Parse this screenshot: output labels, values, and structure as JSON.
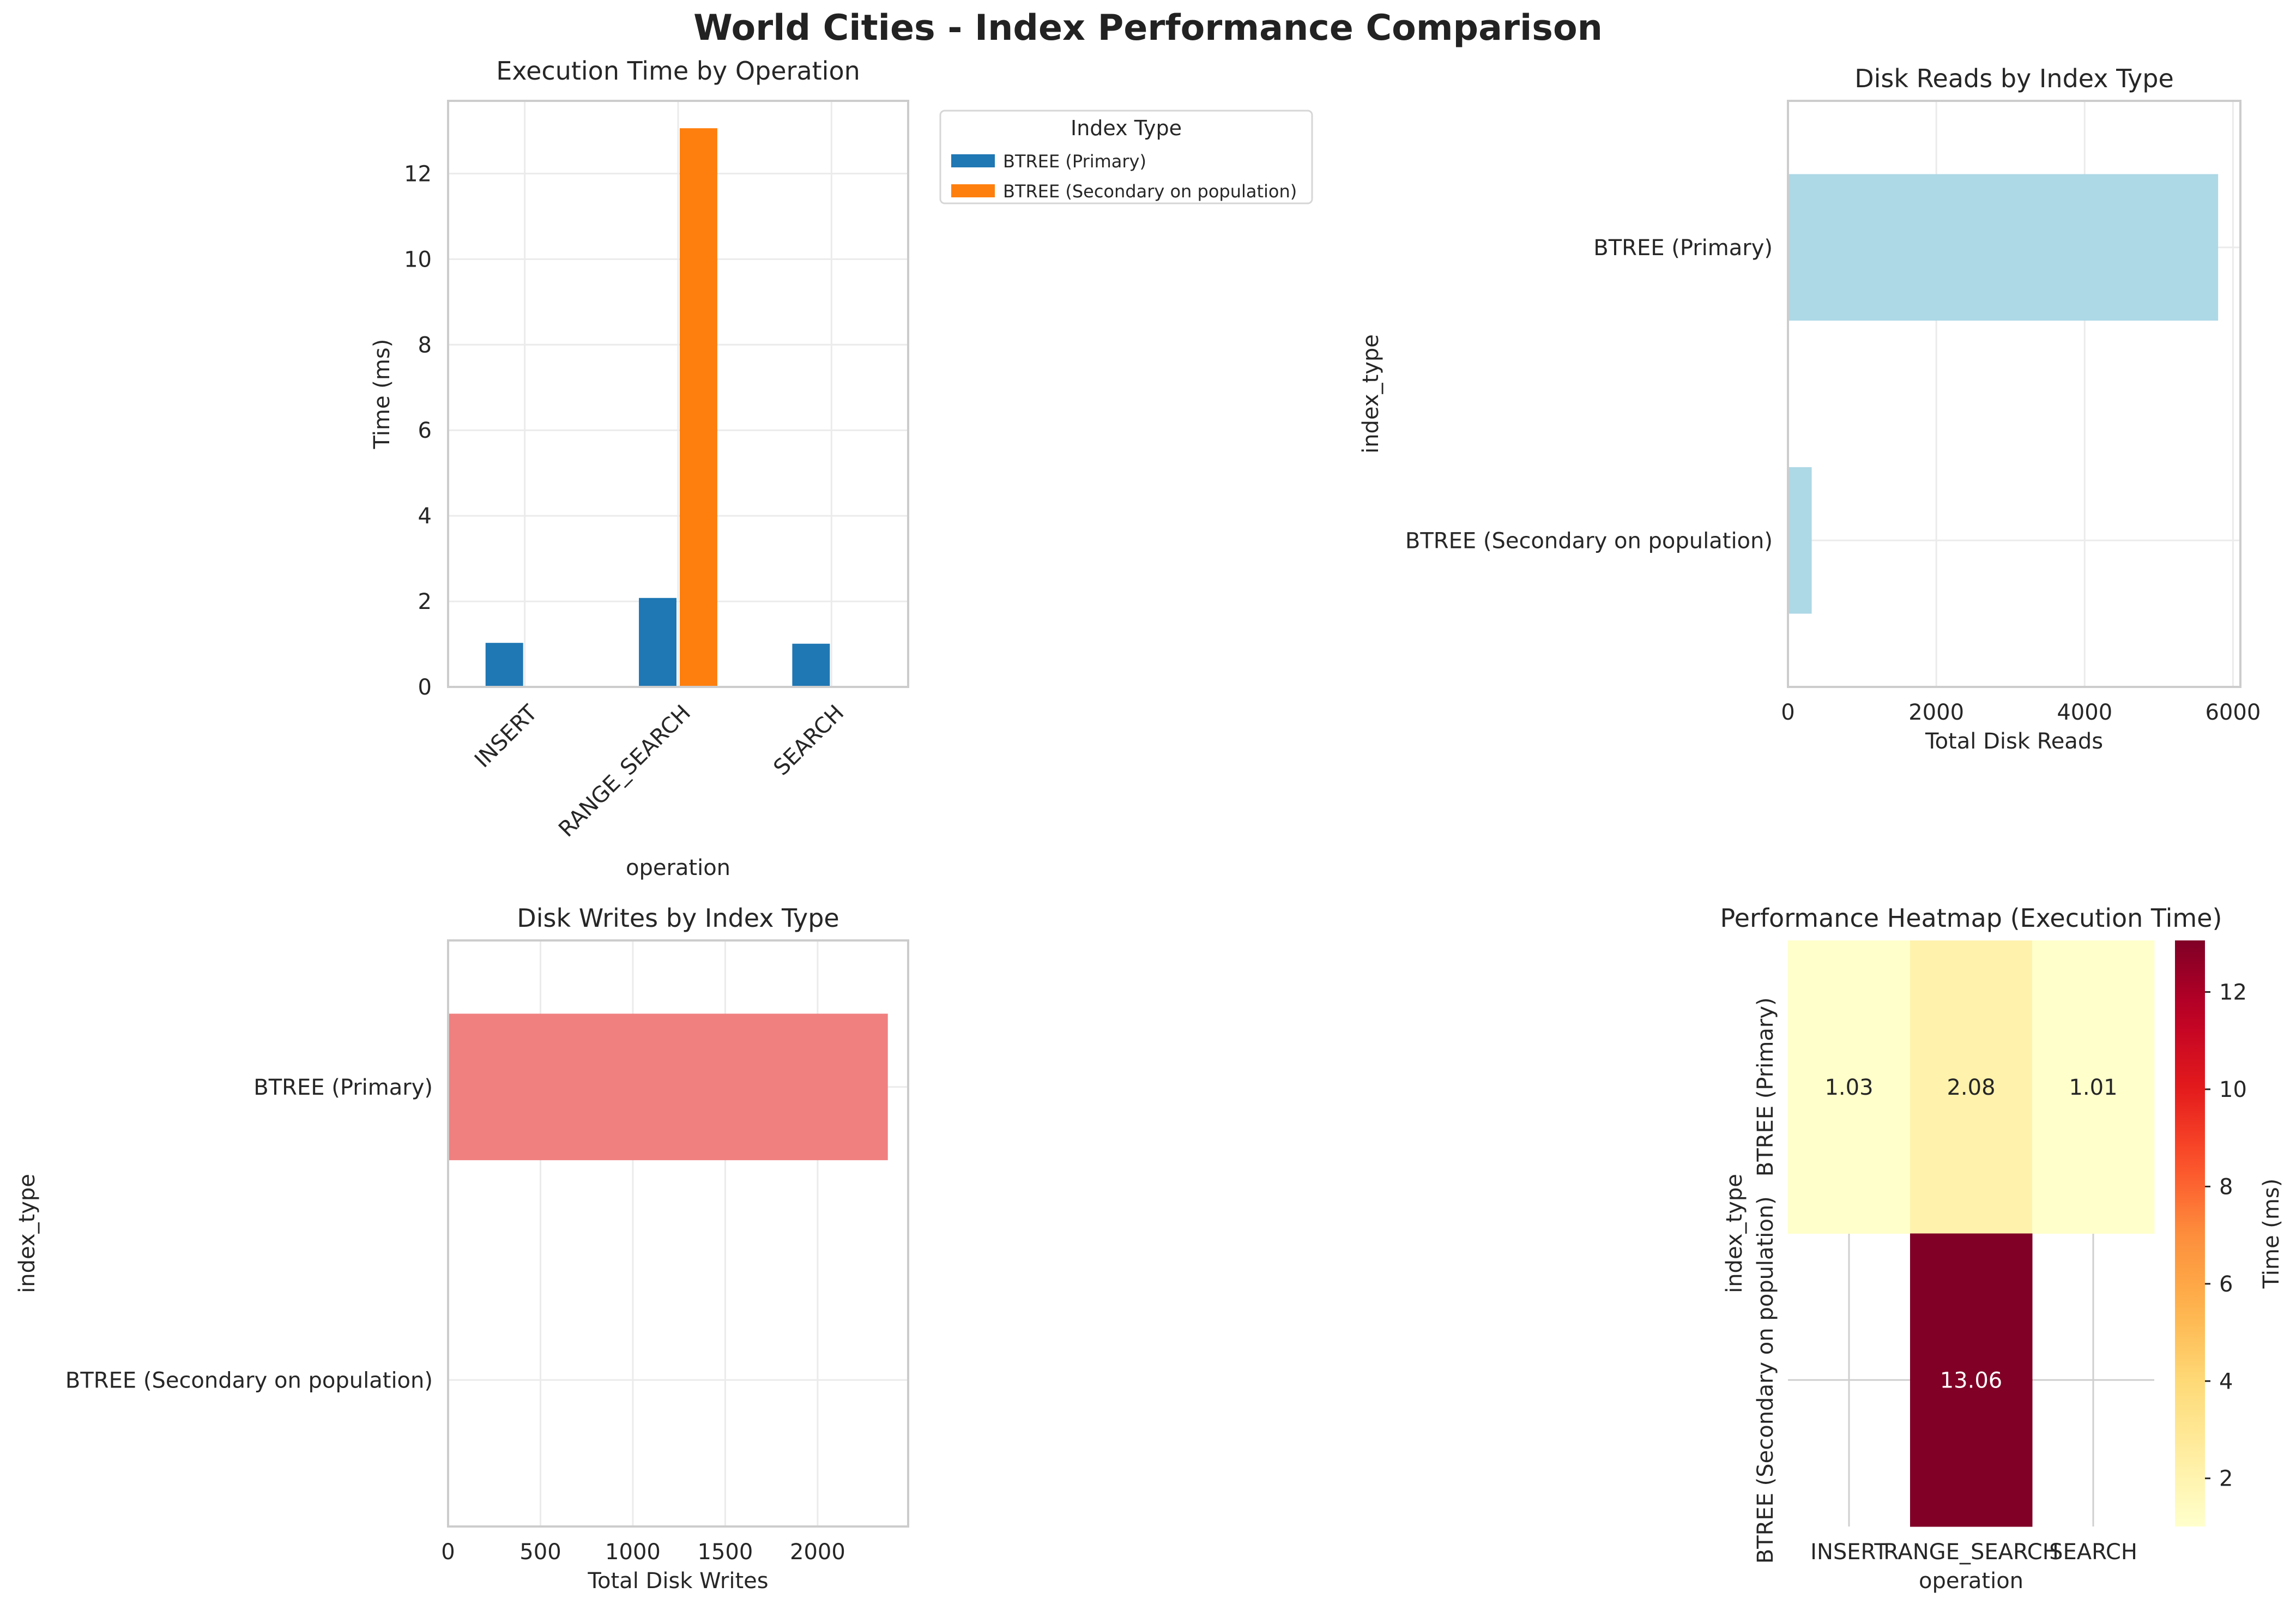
{
  "title": "World Cities - Index Performance Comparison",
  "colors": {
    "btree_primary": "#1f77b4",
    "btree_secondary": "#ff7f0e",
    "disk_reads_bar": "#add8e6",
    "disk_writes_bar": "#f08080",
    "colormap": "YlOrRd"
  },
  "chart_data": [
    {
      "id": "exec_time",
      "type": "bar",
      "title": "Execution Time by Operation",
      "xlabel": "operation",
      "ylabel": "Time (ms)",
      "categories": [
        "INSERT",
        "RANGE_SEARCH",
        "SEARCH"
      ],
      "series": [
        {
          "name": "BTREE (Primary)",
          "values": [
            1.03,
            2.08,
            1.01
          ]
        },
        {
          "name": "BTREE (Secondary on population)",
          "values": [
            0,
            13.06,
            0
          ]
        }
      ],
      "ylim": [
        0,
        13.7
      ],
      "yticks": [
        0,
        2,
        4,
        6,
        8,
        10,
        12
      ],
      "legend": {
        "title": "Index Type",
        "placement": "outside upper-right"
      },
      "grid": true
    },
    {
      "id": "disk_reads",
      "type": "bar",
      "orientation": "horizontal",
      "title": "Disk Reads by Index Type",
      "xlabel": "Total Disk Reads",
      "ylabel": "index_type",
      "categories": [
        "BTREE (Primary)",
        "BTREE (Secondary on population)"
      ],
      "values": [
        5800,
        320
      ],
      "xlim": [
        0,
        6100
      ],
      "xticks": [
        0,
        2000,
        4000,
        6000
      ],
      "grid": true
    },
    {
      "id": "disk_writes",
      "type": "bar",
      "orientation": "horizontal",
      "title": "Disk Writes by Index Type",
      "xlabel": "Total Disk Writes",
      "ylabel": "index_type",
      "categories": [
        "BTREE (Primary)",
        "BTREE (Secondary on population)"
      ],
      "values": [
        2380,
        0
      ],
      "xlim": [
        0,
        2490
      ],
      "xticks": [
        0,
        500,
        1000,
        1500,
        2000
      ],
      "grid": true
    },
    {
      "id": "heatmap",
      "type": "heatmap",
      "title": "Performance Heatmap (Execution Time)",
      "xlabel": "operation",
      "ylabel": "index_type",
      "x": [
        "INSERT",
        "RANGE_SEARCH",
        "SEARCH"
      ],
      "y": [
        "BTREE (Primary)",
        "BTREE (Secondary on population)"
      ],
      "values": [
        [
          1.03,
          2.08,
          1.01
        ],
        [
          null,
          13.06,
          null
        ]
      ],
      "annotations": [
        [
          "1.03",
          "2.08",
          "1.01"
        ],
        [
          "",
          "13.06",
          ""
        ]
      ],
      "colorbar": {
        "label": "Time (ms)",
        "range": [
          1.01,
          13.06
        ],
        "ticks": [
          2,
          4,
          6,
          8,
          10,
          12
        ]
      }
    }
  ]
}
